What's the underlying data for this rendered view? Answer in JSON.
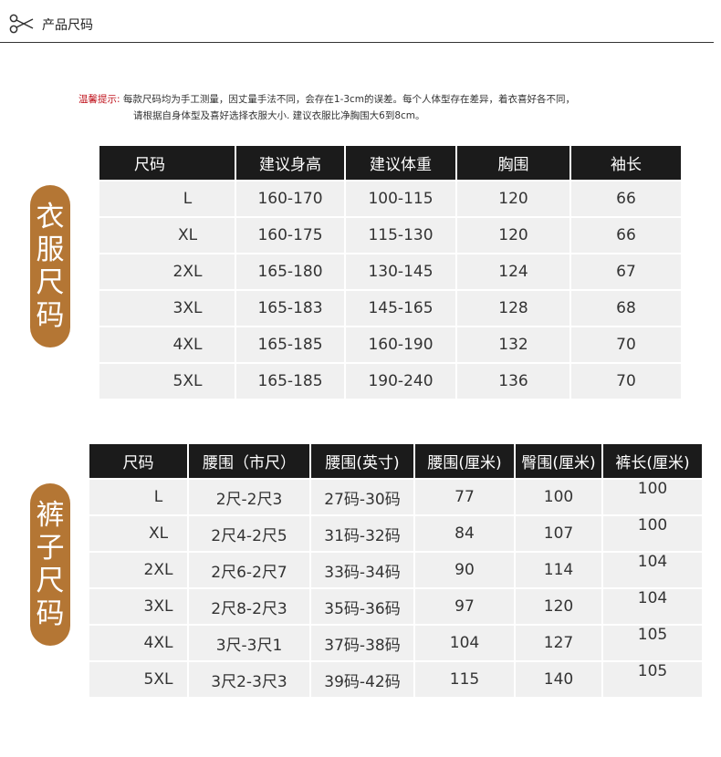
{
  "header": {
    "title": "产品尺码",
    "icon": "scissors-icon"
  },
  "notice": {
    "label": "温馨提示:",
    "line1": "每款尺码均为手工测量，因丈量手法不同，会存在1-3cm的误差。每个人体型存在差异，着衣喜好各不同，",
    "line2": "请根据自身体型及喜好选择衣服大小. 建议衣服比净胸围大6到8cm。"
  },
  "clothing": {
    "label_chars": [
      "衣",
      "服",
      "尺",
      "码"
    ],
    "columns": [
      "尺码",
      "建议身高",
      "建议体重",
      "胸围",
      "袖长"
    ],
    "rows": [
      [
        "L",
        "160-170",
        "100-115",
        "120",
        "66"
      ],
      [
        "XL",
        "160-175",
        "115-130",
        "120",
        "66"
      ],
      [
        "2XL",
        "165-180",
        "130-145",
        "124",
        "67"
      ],
      [
        "3XL",
        "165-183",
        "145-165",
        "128",
        "68"
      ],
      [
        "4XL",
        "165-185",
        "160-190",
        "132",
        "70"
      ],
      [
        "5XL",
        "165-185",
        "190-240",
        "136",
        "70"
      ]
    ]
  },
  "pants": {
    "label_chars": [
      "裤",
      "子",
      "尺",
      "码"
    ],
    "columns": [
      "尺码",
      "腰围（市尺）",
      "腰围(英寸)",
      "腰围(厘米)",
      "臀围(厘米)",
      "裤长(厘米)"
    ],
    "rows": [
      [
        "L",
        "2尺-2尺3",
        "27码-30码",
        "77",
        "100",
        "100"
      ],
      [
        "XL",
        "2尺4-2尺5",
        "31码-32码",
        "84",
        "107",
        "100"
      ],
      [
        "2XL",
        "2尺6-2尺7",
        "33码-34码",
        "90",
        "114",
        "104"
      ],
      [
        "3XL",
        "2尺8-2尺3",
        "35码-36码",
        "97",
        "120",
        "104"
      ],
      [
        "4XL",
        "3尺-3尺1",
        "37码-38码",
        "104",
        "127",
        "105"
      ],
      [
        "5XL",
        "3尺2-3尺3",
        "39码-42码",
        "115",
        "140",
        "105"
      ]
    ]
  },
  "colors": {
    "accent": "#b47634",
    "header_bg": "#1b1b1b",
    "cell_bg": "#f0f0f0",
    "notice_label": "#c0141e"
  }
}
